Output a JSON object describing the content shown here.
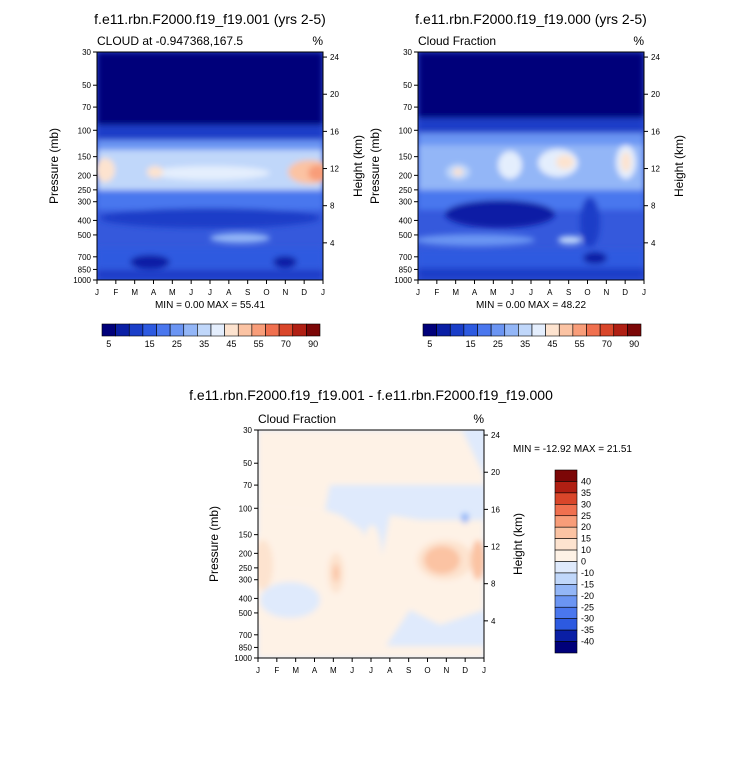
{
  "panels": [
    {
      "title": "f.e11.rbn.F2000.f19_f19.001 (yrs 2-5)",
      "subtitle_left": "CLOUD at -0.947368,167.5",
      "subtitle_right": "%",
      "stats": "MIN =   0.00 MAX =  55.41"
    },
    {
      "title": "f.e11.rbn.F2000.f19_f19.000 (yrs 2-5)",
      "subtitle_left": "Cloud Fraction",
      "subtitle_right": "%",
      "stats": "MIN =   0.00 MAX =  48.22"
    },
    {
      "title": "f.e11.rbn.F2000.f19_f19.001 - f.e11.rbn.F2000.f19_f19.000",
      "subtitle_left": "Cloud Fraction",
      "subtitle_right": "%",
      "stats": "MIN = -12.92 MAX =  21.51"
    }
  ],
  "chart_data": [
    {
      "type": "heatmap",
      "title": "f.e11.rbn.F2000.f19_f19.001 (yrs 2-5)",
      "subtitle": "CLOUD at -0.947368,167.5",
      "units": "%",
      "xlabel": "",
      "ylabel": "Pressure (mb)",
      "ylabel_right": "Height (km)",
      "x_categories": [
        "J",
        "F",
        "M",
        "A",
        "M",
        "J",
        "J",
        "A",
        "S",
        "O",
        "N",
        "D",
        "J"
      ],
      "y_ticks_pressure": [
        30,
        50,
        70,
        100,
        150,
        200,
        250,
        300,
        400,
        500,
        700,
        850,
        1000
      ],
      "y_ticks_height": [
        24,
        20,
        16,
        12,
        8,
        4
      ],
      "y_scale": "log",
      "min": 0.0,
      "max": 55.41,
      "colorbar_labels": [
        "5",
        "15",
        "25",
        "35",
        "45",
        "55",
        "70",
        "90"
      ],
      "colorbar_levels": [
        0,
        5,
        10,
        15,
        20,
        25,
        30,
        35,
        40,
        45,
        50,
        55,
        60,
        70,
        80,
        90
      ]
    },
    {
      "type": "heatmap",
      "title": "f.e11.rbn.F2000.f19_f19.000 (yrs 2-5)",
      "subtitle": "Cloud Fraction",
      "units": "%",
      "xlabel": "",
      "ylabel": "Pressure (mb)",
      "ylabel_right": "Height (km)",
      "x_categories": [
        "J",
        "F",
        "M",
        "A",
        "M",
        "J",
        "J",
        "A",
        "S",
        "O",
        "N",
        "D",
        "J"
      ],
      "y_ticks_pressure": [
        30,
        50,
        70,
        100,
        150,
        200,
        250,
        300,
        400,
        500,
        700,
        850,
        1000
      ],
      "y_ticks_height": [
        24,
        20,
        16,
        12,
        8,
        4
      ],
      "y_scale": "log",
      "min": 0.0,
      "max": 48.22,
      "colorbar_labels": [
        "5",
        "15",
        "25",
        "35",
        "45",
        "55",
        "70",
        "90"
      ],
      "colorbar_levels": [
        0,
        5,
        10,
        15,
        20,
        25,
        30,
        35,
        40,
        45,
        50,
        55,
        60,
        70,
        80,
        90
      ]
    },
    {
      "type": "heatmap",
      "title": "f.e11.rbn.F2000.f19_f19.001 - f.e11.rbn.F2000.f19_f19.000",
      "subtitle": "Cloud Fraction",
      "units": "%",
      "xlabel": "",
      "ylabel": "Pressure (mb)",
      "ylabel_right": "Height (km)",
      "x_categories": [
        "J",
        "F",
        "M",
        "A",
        "M",
        "J",
        "J",
        "A",
        "S",
        "O",
        "N",
        "D",
        "J"
      ],
      "y_ticks_pressure": [
        30,
        50,
        70,
        100,
        150,
        200,
        250,
        300,
        400,
        500,
        700,
        850,
        1000
      ],
      "y_ticks_height": [
        24,
        20,
        16,
        12,
        8,
        4
      ],
      "y_scale": "log",
      "min": -12.92,
      "max": 21.51,
      "colorbar_labels": [
        "40",
        "35",
        "30",
        "25",
        "20",
        "15",
        "10",
        "0",
        "-10",
        "-15",
        "-20",
        "-25",
        "-30",
        "-35",
        "-40"
      ]
    }
  ],
  "colors": {
    "seq": [
      "#00007a",
      "#0a1fa5",
      "#1a3ec8",
      "#2d5ae0",
      "#4a77ee",
      "#6b95f3",
      "#93b6f7",
      "#c0d7fa",
      "#e4eefd",
      "#fde3cf",
      "#fbc3a3",
      "#f89d79",
      "#f0704f",
      "#d9462a",
      "#b01f13",
      "#7c0707"
    ],
    "div": [
      "#7c0707",
      "#b01f13",
      "#d9462a",
      "#f0704f",
      "#f89d79",
      "#fbc3a3",
      "#fde3cf",
      "#fef2e6",
      "#dfeafc",
      "#c0d7fa",
      "#93b6f7",
      "#6b95f3",
      "#4a77ee",
      "#2d5ae0",
      "#0a1fa5",
      "#00007a"
    ]
  }
}
